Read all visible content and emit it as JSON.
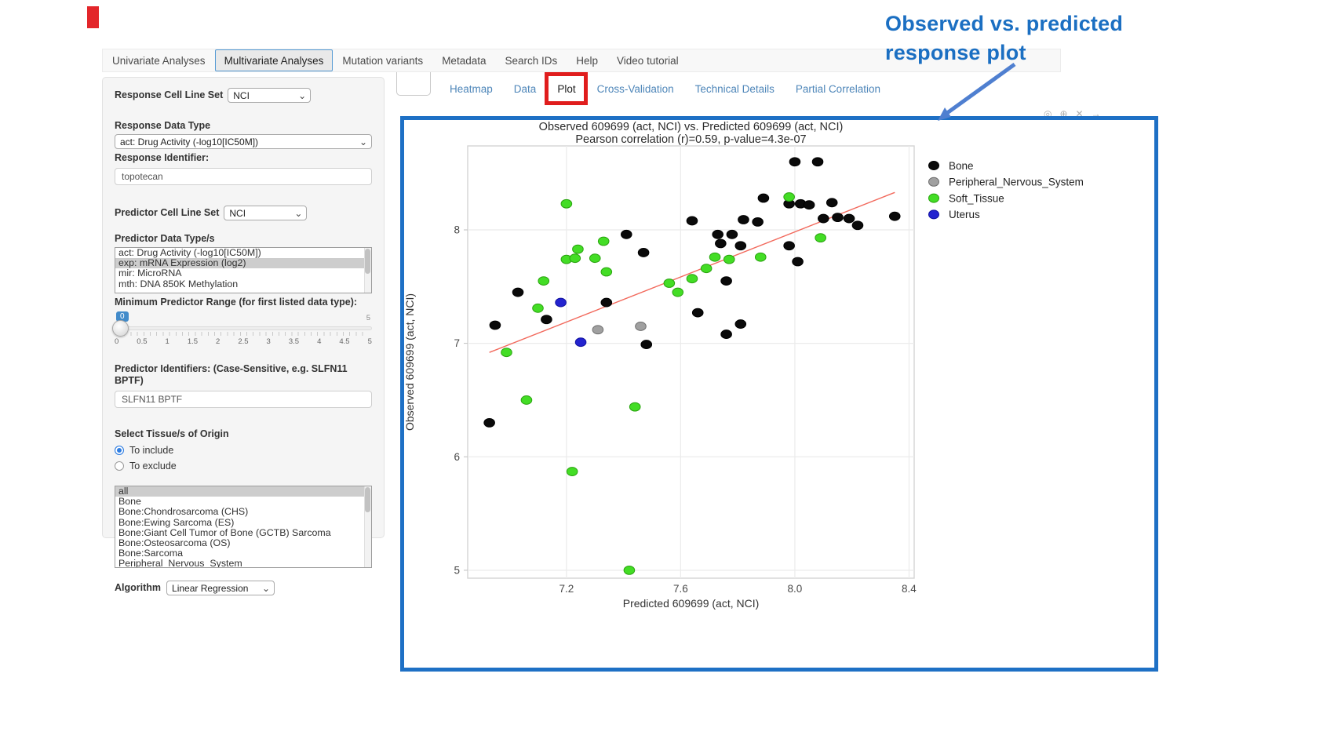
{
  "annotation": {
    "line1": "Observed  vs. predicted",
    "line2": "response plot"
  },
  "navbar": {
    "tabs": [
      {
        "label": "Univariate Analyses",
        "active": false
      },
      {
        "label": "Multivariate Analyses",
        "active": true
      },
      {
        "label": "Mutation variants",
        "active": false
      },
      {
        "label": "Metadata",
        "active": false
      },
      {
        "label": "Search IDs",
        "active": false
      },
      {
        "label": "Help",
        "active": false
      },
      {
        "label": "Video tutorial",
        "active": false
      }
    ]
  },
  "subtabs": {
    "items": [
      "Heatmap",
      "Data",
      "Plot",
      "Cross-Validation",
      "Technical Details",
      "Partial Correlation"
    ],
    "active": "Plot"
  },
  "sidebar": {
    "response_cell_line_set": {
      "label": "Response Cell Line Set",
      "value": "NCI"
    },
    "response_data_type": {
      "label": "Response Data Type",
      "value": "act: Drug Activity (-log10[IC50M])"
    },
    "response_identifier": {
      "label": "Response Identifier:",
      "value": "topotecan"
    },
    "predictor_cell_line_set": {
      "label": "Predictor Cell Line Set",
      "value": "NCI"
    },
    "predictor_data_types": {
      "label": "Predictor Data Type/s",
      "options": [
        "act: Drug Activity (-log10[IC50M])",
        "exp: mRNA Expression (log2)",
        "mir: MicroRNA",
        "mth: DNA 850K Methylation"
      ],
      "selected": "exp: mRNA Expression (log2)"
    },
    "min_predictor_range": {
      "label": "Minimum Predictor Range (for first listed data type):",
      "value": "0",
      "max_label": "5",
      "tick_labels": [
        "0",
        "0.5",
        "1",
        "1.5",
        "2",
        "2.5",
        "3",
        "3.5",
        "4",
        "4.5",
        "5"
      ]
    },
    "predictor_identifiers": {
      "label": "Predictor Identifiers: (Case-Sensitive, e.g. SLFN11 BPTF)",
      "value": "SLFN11 BPTF"
    },
    "tissue_origin": {
      "label": "Select Tissue/s of Origin",
      "options": [
        {
          "label": "To include",
          "selected": true
        },
        {
          "label": "To exclude",
          "selected": false
        }
      ]
    },
    "tissue_list": {
      "options": [
        "all",
        "Bone",
        "Bone:Chondrosarcoma (CHS)",
        "Bone:Ewing Sarcoma (ES)",
        "Bone:Giant Cell Tumor of Bone (GCTB) Sarcoma",
        "Bone:Osteosarcoma (OS)",
        "Bone:Sarcoma",
        "Peripheral_Nervous_System"
      ],
      "selected": "all"
    },
    "algorithm": {
      "label": "Algorithm",
      "value": "Linear Regression"
    }
  },
  "icons": {
    "chevron_down": "⌄",
    "modebar": [
      "◎",
      "⊕",
      "✕",
      "→"
    ]
  },
  "colors": {
    "annotation_blue": "#1b6fc2",
    "frame_blue": "#1e70c5",
    "redbox": "#e01d1d",
    "trend": "#f2695c"
  },
  "chart_data": {
    "type": "scatter",
    "title": "Observed 609699 (act, NCI) vs. Predicted 609699 (act, NCI)",
    "subtitle": "Pearson correlation (r)=0.59, p-value=4.3e-07",
    "xlabel": "Predicted 609699 (act, NCI)",
    "ylabel": "Observed 609699 (act, NCI)",
    "xlim": [
      6.854,
      8.418
    ],
    "ylim": [
      4.93,
      8.74
    ],
    "xticks": [
      7.2,
      7.6,
      8.0,
      8.4
    ],
    "xtick_labels": [
      "7.2",
      "7.6",
      "8.0",
      "8.4"
    ],
    "yticks": [
      5,
      6,
      7,
      8
    ],
    "ytick_labels": [
      "5",
      "6",
      "7",
      "8"
    ],
    "grid": true,
    "legend_position": "right",
    "trend_line": {
      "x": [
        6.93,
        8.35
      ],
      "y": [
        6.92,
        8.33
      ],
      "color": "#f2695c"
    },
    "series": [
      {
        "name": "Bone",
        "color": "#0a0a0a",
        "stroke": "#000000",
        "points": [
          [
            8.0,
            8.6
          ],
          [
            8.08,
            8.6
          ],
          [
            7.89,
            8.28
          ],
          [
            7.98,
            8.23
          ],
          [
            8.02,
            8.23
          ],
          [
            8.05,
            8.22
          ],
          [
            8.13,
            8.24
          ],
          [
            8.1,
            8.1
          ],
          [
            8.15,
            8.11
          ],
          [
            8.19,
            8.1
          ],
          [
            8.22,
            8.04
          ],
          [
            8.35,
            8.12
          ],
          [
            7.64,
            8.08
          ],
          [
            7.82,
            8.09
          ],
          [
            7.87,
            8.07
          ],
          [
            7.41,
            7.96
          ],
          [
            7.73,
            7.96
          ],
          [
            7.78,
            7.96
          ],
          [
            7.74,
            7.88
          ],
          [
            7.81,
            7.86
          ],
          [
            7.98,
            7.86
          ],
          [
            7.47,
            7.8
          ],
          [
            8.01,
            7.72
          ],
          [
            7.76,
            7.55
          ],
          [
            7.03,
            7.45
          ],
          [
            7.34,
            7.36
          ],
          [
            7.13,
            7.21
          ],
          [
            6.95,
            7.16
          ],
          [
            7.66,
            7.27
          ],
          [
            7.81,
            7.17
          ],
          [
            7.76,
            7.08
          ],
          [
            7.48,
            6.99
          ],
          [
            6.93,
            6.3
          ]
        ]
      },
      {
        "name": "Peripheral_Nervous_System",
        "color": "#a0a0a0",
        "stroke": "#6e6e6e",
        "points": [
          [
            7.31,
            7.12
          ],
          [
            7.46,
            7.15
          ]
        ]
      },
      {
        "name": "Soft_Tissue",
        "color": "#43dd25",
        "stroke": "#2aa40f",
        "points": [
          [
            7.2,
            8.23
          ],
          [
            7.98,
            8.29
          ],
          [
            7.33,
            7.9
          ],
          [
            8.09,
            7.93
          ],
          [
            7.24,
            7.83
          ],
          [
            7.2,
            7.74
          ],
          [
            7.23,
            7.75
          ],
          [
            7.3,
            7.75
          ],
          [
            7.72,
            7.76
          ],
          [
            7.77,
            7.74
          ],
          [
            7.88,
            7.76
          ],
          [
            7.34,
            7.63
          ],
          [
            7.69,
            7.66
          ],
          [
            7.64,
            7.57
          ],
          [
            7.56,
            7.53
          ],
          [
            7.59,
            7.45
          ],
          [
            7.12,
            7.55
          ],
          [
            7.1,
            7.31
          ],
          [
            6.99,
            6.92
          ],
          [
            7.06,
            6.5
          ],
          [
            7.44,
            6.44
          ],
          [
            7.22,
            5.87
          ],
          [
            7.42,
            5.0
          ]
        ]
      },
      {
        "name": "Uterus",
        "color": "#2323cf",
        "stroke": "#1212a0",
        "points": [
          [
            7.18,
            7.36
          ],
          [
            7.25,
            7.01
          ]
        ]
      }
    ]
  }
}
